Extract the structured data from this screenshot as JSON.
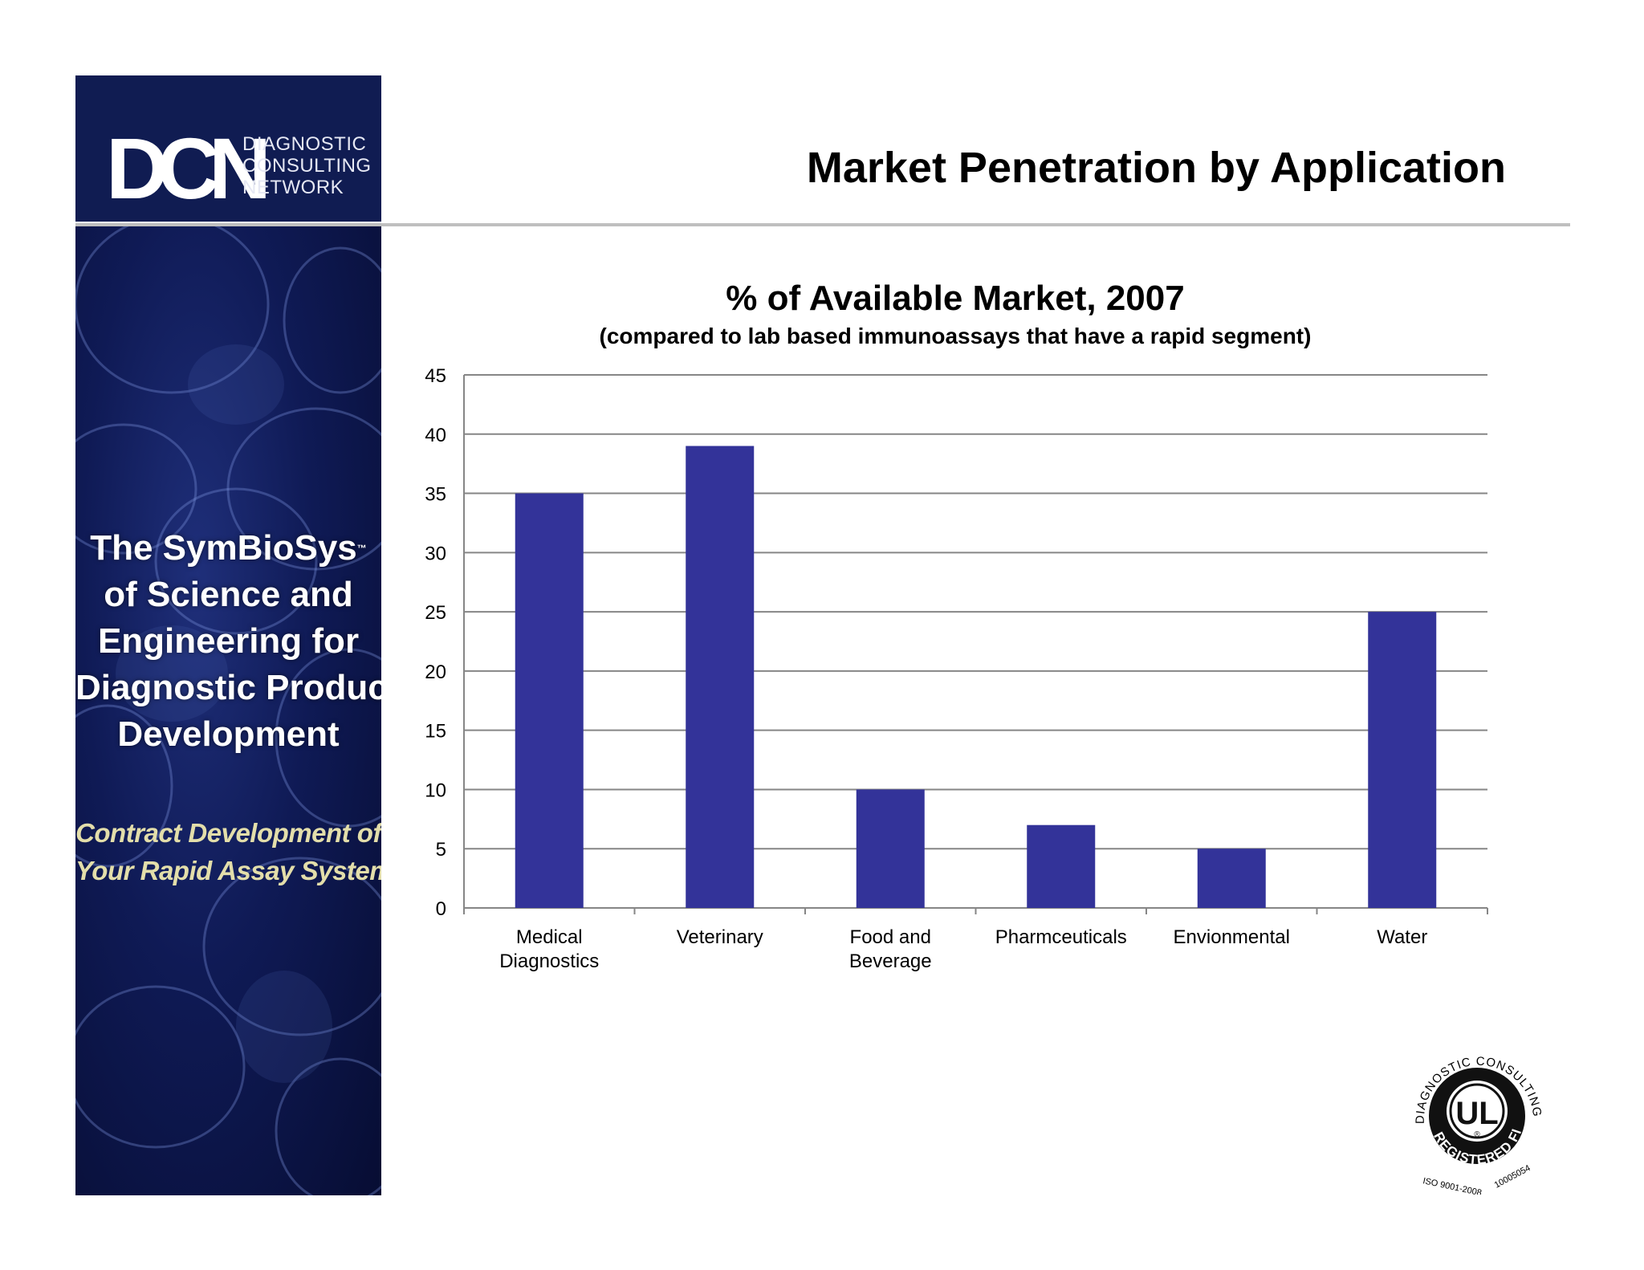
{
  "sidebar": {
    "logo": {
      "mark": "DCN",
      "words": [
        "DIAGNOSTIC",
        "CONSULTING",
        "NETWORK"
      ]
    },
    "tagline": [
      "The SymBioSys",
      "of Science and",
      "Engineering for",
      "Diagnostic  Product",
      "Development"
    ],
    "trademark": "™",
    "subtagline": [
      "Contract Development of",
      "Your Rapid Assay Systems"
    ]
  },
  "header": {
    "title": "Market Penetration by Application"
  },
  "chart_data": {
    "type": "bar",
    "title": "% of Available Market, 2007",
    "subtitle": "(compared to lab based immunoassays that have a rapid segment)",
    "categories": [
      "Medical\nDiagnostics",
      "Veterinary",
      "Food and\nBeverage",
      "Pharmceuticals",
      "Envionmental",
      "Water"
    ],
    "values": [
      35,
      39,
      10,
      7,
      5,
      25
    ],
    "ylim": [
      0,
      45
    ],
    "yticks": [
      0,
      5,
      10,
      15,
      20,
      25,
      30,
      35,
      40,
      45
    ],
    "grid": true,
    "bar_color": "#333399",
    "grid_color": "#868686"
  },
  "seal": {
    "arc_text": "DIAGNOSTIC CONSULTING NETWORK",
    "center": "UL",
    "registered": "®",
    "band_text": "REGISTERED FIRM",
    "iso": "ISO 9001-2008",
    "number": "10005054"
  }
}
